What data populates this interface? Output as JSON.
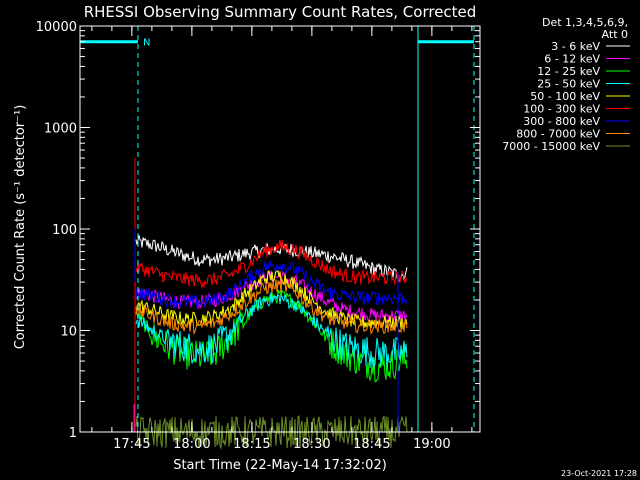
{
  "chart_data": {
    "type": "line",
    "title": "RHESSI Observing Summary Count Rates, Corrected",
    "xlabel": "Start Time (22-May-14 17:32:02)",
    "ylabel": "Corrected Count Rate (s⁻¹ detector⁻¹)",
    "yscale": "log",
    "ylim": [
      1,
      10000
    ],
    "xlim_minutes": [
      0,
      100
    ],
    "xticks": [
      {
        "label": "17:45",
        "value": 12.97
      },
      {
        "label": "18:00",
        "value": 27.97
      },
      {
        "label": "18:15",
        "value": 42.97
      },
      {
        "label": "18:30",
        "value": 57.97
      },
      {
        "label": "18:45",
        "value": 72.97
      },
      {
        "label": "19:00",
        "value": 87.97
      }
    ],
    "yticks": [
      {
        "label": "1",
        "value": 1
      },
      {
        "label": "10",
        "value": 10
      },
      {
        "label": "100",
        "value": 100
      },
      {
        "label": "1000",
        "value": 1000
      },
      {
        "label": "10000",
        "value": 10000
      }
    ],
    "legend_header": [
      "Det 1,3,4,5,6,9,",
      "Att 0"
    ],
    "legend_placement": "top-right",
    "series": [
      {
        "name": "3 - 6 keV",
        "color": "#ffffff",
        "x": [
          14,
          18,
          22,
          26,
          30,
          34,
          38,
          42,
          46,
          50,
          54,
          58,
          62,
          66,
          70,
          74,
          77,
          80,
          82
        ],
        "y": [
          75,
          70,
          62,
          55,
          50,
          50,
          53,
          58,
          62,
          64,
          62,
          58,
          55,
          50,
          45,
          40,
          38,
          35,
          37
        ]
      },
      {
        "name": "6 - 12 keV",
        "color": "#ff00ff",
        "x": [
          14,
          18,
          22,
          26,
          30,
          34,
          38,
          42,
          46,
          50,
          54,
          58,
          62,
          66,
          70,
          74,
          77,
          80,
          82
        ],
        "y": [
          24,
          22,
          20,
          19,
          19,
          20,
          23,
          28,
          33,
          34,
          30,
          24,
          19,
          16,
          15,
          14,
          14,
          14,
          14
        ]
      },
      {
        "name": "12 - 25 keV",
        "color": "#00ff00",
        "x": [
          14,
          18,
          22,
          26,
          30,
          34,
          38,
          42,
          46,
          50,
          54,
          58,
          62,
          66,
          70,
          74,
          77,
          80,
          82
        ],
        "y": [
          15,
          9,
          7,
          6,
          5.5,
          6,
          9,
          14,
          20,
          22,
          19,
          13,
          8,
          6,
          5,
          4.5,
          4.5,
          5,
          5
        ]
      },
      {
        "name": "25 - 50 keV",
        "color": "#00ffff",
        "x": [
          14,
          18,
          22,
          26,
          30,
          34,
          38,
          42,
          46,
          50,
          54,
          58,
          62,
          66,
          70,
          74,
          77,
          80,
          82
        ],
        "y": [
          13,
          10,
          8,
          7,
          6.5,
          7,
          10,
          15,
          20,
          21,
          18,
          13,
          9,
          7,
          6.5,
          6,
          6,
          6,
          6
        ]
      },
      {
        "name": "50 - 100 keV",
        "color": "#ffff00",
        "x": [
          14,
          18,
          22,
          26,
          30,
          34,
          38,
          42,
          46,
          50,
          54,
          58,
          62,
          66,
          70,
          74,
          77,
          80,
          82
        ],
        "y": [
          18,
          16,
          14,
          13,
          13,
          14,
          17,
          24,
          33,
          35,
          28,
          20,
          15,
          13,
          12,
          12,
          12,
          12,
          12
        ]
      },
      {
        "name": "100 - 300 keV",
        "color": "#ff0000",
        "x": [
          14,
          18,
          22,
          26,
          30,
          34,
          38,
          42,
          46,
          50,
          54,
          58,
          62,
          66,
          70,
          74,
          77,
          80,
          82
        ],
        "y": [
          42,
          38,
          34,
          32,
          31,
          32,
          36,
          45,
          60,
          68,
          62,
          50,
          40,
          35,
          33,
          33,
          33,
          33,
          33
        ]
      },
      {
        "name": "300 - 800 keV",
        "color": "#0000ff",
        "x": [
          14,
          18,
          22,
          26,
          30,
          34,
          38,
          42,
          46,
          50,
          54,
          58,
          62,
          66,
          70,
          74,
          77,
          80,
          82
        ],
        "y": [
          24,
          22,
          20,
          19,
          19,
          20,
          24,
          32,
          42,
          45,
          40,
          30,
          24,
          22,
          21,
          21,
          21,
          21,
          21
        ]
      },
      {
        "name": "800 - 7000 keV",
        "color": "#ff8800",
        "x": [
          14,
          18,
          22,
          26,
          30,
          34,
          38,
          42,
          46,
          50,
          54,
          58,
          62,
          66,
          70,
          74,
          77,
          80,
          82
        ],
        "y": [
          16,
          14,
          12,
          11,
          11,
          12,
          15,
          20,
          26,
          28,
          24,
          17,
          13,
          12,
          11,
          11,
          11,
          11,
          11
        ]
      },
      {
        "name": "7000 - 15000 keV",
        "color": "#6b8e23",
        "x": [
          14,
          82
        ],
        "y": [
          1,
          1
        ]
      }
    ],
    "markers": {
      "n_label": "N",
      "solid_lines_minutes": [
        0,
        84.5
      ],
      "dashed_lines_minutes": [
        14.5,
        84.5,
        98.5
      ],
      "top_segments_minutes": [
        [
          0,
          14.5
        ],
        [
          84.5,
          98.5
        ]
      ],
      "top_segment_value": 7000,
      "color": "#00ffff"
    }
  },
  "footer": {
    "timestamp": "23-Oct-2021 17:28"
  }
}
